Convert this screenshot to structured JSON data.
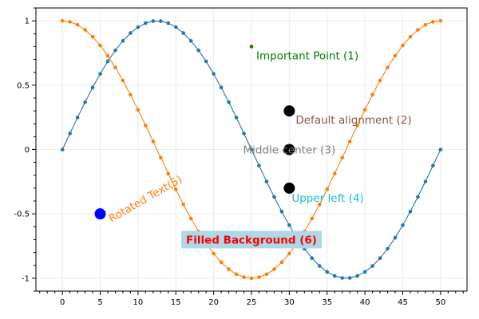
{
  "chart_data": {
    "type": "line",
    "title": "",
    "xlabel": "",
    "ylabel": "",
    "xlim": [
      -3.5,
      53.5
    ],
    "ylim": [
      -1.1,
      1.1
    ],
    "grid": true,
    "x_ticks": [
      0,
      5,
      10,
      15,
      20,
      25,
      30,
      35,
      40,
      45,
      50
    ],
    "x_tick_labels": [
      "0",
      "5",
      "10",
      "15",
      "20",
      "25",
      "30",
      "35",
      "40",
      "45",
      "50"
    ],
    "y_ticks": [
      1,
      0.5,
      0,
      -0.5,
      -1
    ],
    "y_tick_labels": [
      "1",
      "0.5",
      "0",
      "-0.5",
      "-1"
    ],
    "series": [
      {
        "color": "#1f77b4",
        "x": [
          0,
          1,
          2,
          3,
          4,
          5,
          6,
          7,
          8,
          9,
          10,
          11,
          12,
          13,
          14,
          15,
          16,
          17,
          18,
          19,
          20,
          21,
          22,
          23,
          24,
          25,
          26,
          27,
          28,
          29,
          30,
          31,
          32,
          33,
          34,
          35,
          36,
          37,
          38,
          39,
          40,
          41,
          42,
          43,
          44,
          45,
          46,
          47,
          48,
          49,
          50
        ],
        "y": [
          0,
          0.125,
          0.249,
          0.368,
          0.482,
          0.588,
          0.685,
          0.771,
          0.844,
          0.905,
          0.951,
          0.982,
          0.998,
          0.998,
          0.982,
          0.951,
          0.905,
          0.844,
          0.771,
          0.685,
          0.588,
          0.482,
          0.368,
          0.249,
          0.125,
          0,
          -0.125,
          -0.249,
          -0.368,
          -0.482,
          -0.588,
          -0.685,
          -0.771,
          -0.844,
          -0.905,
          -0.951,
          -0.982,
          -0.998,
          -0.998,
          -0.982,
          -0.951,
          -0.905,
          -0.844,
          -0.771,
          -0.685,
          -0.588,
          -0.482,
          -0.368,
          -0.249,
          -0.125,
          0
        ]
      },
      {
        "color": "#ff7f0e",
        "x": [
          0,
          1,
          2,
          3,
          4,
          5,
          6,
          7,
          8,
          9,
          10,
          11,
          12,
          13,
          14,
          15,
          16,
          17,
          18,
          19,
          20,
          21,
          22,
          23,
          24,
          25,
          26,
          27,
          28,
          29,
          30,
          31,
          32,
          33,
          34,
          35,
          36,
          37,
          38,
          39,
          40,
          41,
          42,
          43,
          44,
          45,
          46,
          47,
          48,
          49,
          50
        ],
        "y": [
          1,
          0.992,
          0.969,
          0.93,
          0.876,
          0.809,
          0.729,
          0.637,
          0.536,
          0.426,
          0.309,
          0.187,
          0.063,
          -0.063,
          -0.187,
          -0.309,
          -0.426,
          -0.536,
          -0.637,
          -0.729,
          -0.809,
          -0.876,
          -0.93,
          -0.969,
          -0.992,
          -1,
          -0.992,
          -0.969,
          -0.93,
          -0.876,
          -0.809,
          -0.729,
          -0.637,
          -0.536,
          -0.426,
          -0.309,
          -0.187,
          -0.063,
          0.063,
          0.187,
          0.309,
          0.426,
          0.536,
          0.637,
          0.729,
          0.809,
          0.876,
          0.93,
          0.969,
          0.992,
          1
        ]
      }
    ],
    "annotations": [
      {
        "id": "important-point",
        "text": "Important Point (1)",
        "x": 25,
        "y": 0.8,
        "marker_color": "#008000",
        "marker_size": "small",
        "text_color": "#008000",
        "rotation": 0,
        "background": null
      },
      {
        "id": "default-alignment",
        "text": "Default alignment (2)",
        "x": 30,
        "y": 0.3,
        "marker_color": "#000000",
        "marker_size": "large",
        "text_color": "#8c564b",
        "rotation": 0,
        "background": null
      },
      {
        "id": "middle-center",
        "text": "Middle center (3)",
        "x": 30,
        "y": 0,
        "marker_color": "#000000",
        "marker_size": "large",
        "text_color": "#7f7f7f",
        "rotation": 0,
        "background": null
      },
      {
        "id": "upper-left",
        "text": "Upper left (4)",
        "x": 30,
        "y": -0.3,
        "marker_color": "#000000",
        "marker_size": "large",
        "text_color": "#17becf",
        "rotation": 0,
        "background": null
      },
      {
        "id": "rotated-text",
        "text": "Rotated Text(5)",
        "x": 5,
        "y": -0.5,
        "marker_color": "#0000ff",
        "marker_size": "large",
        "text_color": "#ff7f0e",
        "rotation": -30,
        "background": null
      },
      {
        "id": "filled-background",
        "text": "Filled Background (6)",
        "x": 25,
        "y": -0.7,
        "marker_color": null,
        "marker_size": null,
        "text_color": "#ff0000",
        "rotation": 0,
        "background": "#add8e6"
      }
    ]
  }
}
